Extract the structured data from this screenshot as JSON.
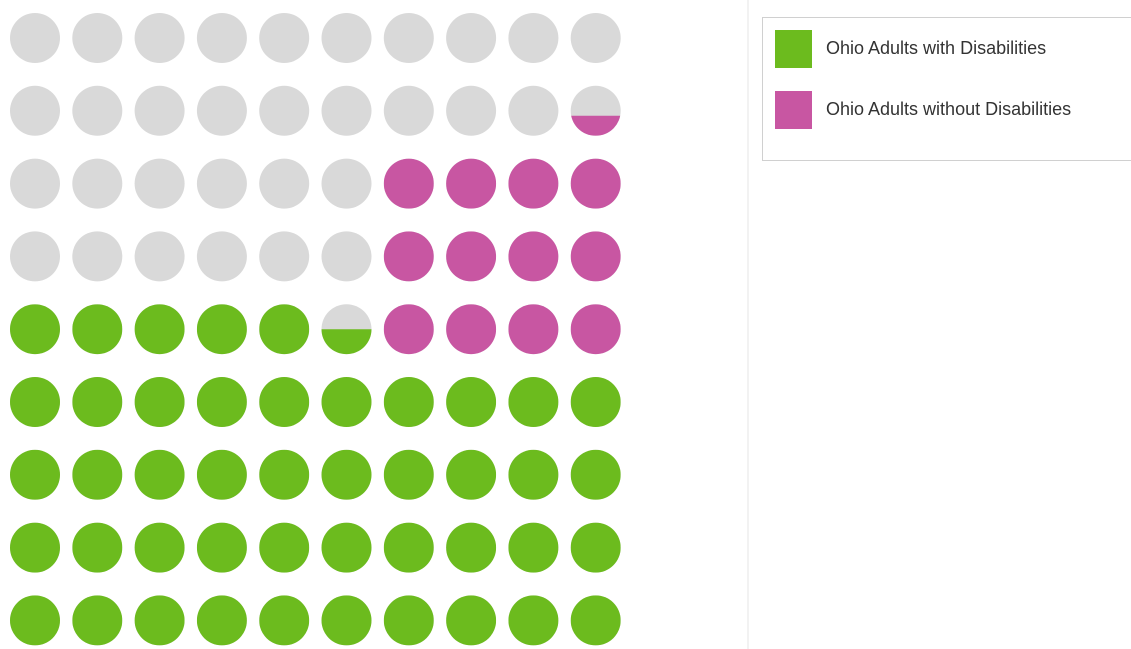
{
  "chart_data": {
    "type": "waffle",
    "columns": 10,
    "rows": 9,
    "empty_color": "#d9d9d9",
    "series": [
      {
        "name": "Ohio Adults with Disabilities",
        "color": "#6cbb1e",
        "values": [
          45.5
        ]
      },
      {
        "name": "Ohio Adults without Disabilities",
        "color": "#c856a2",
        "values": [
          12.4
        ]
      }
    ]
  }
}
